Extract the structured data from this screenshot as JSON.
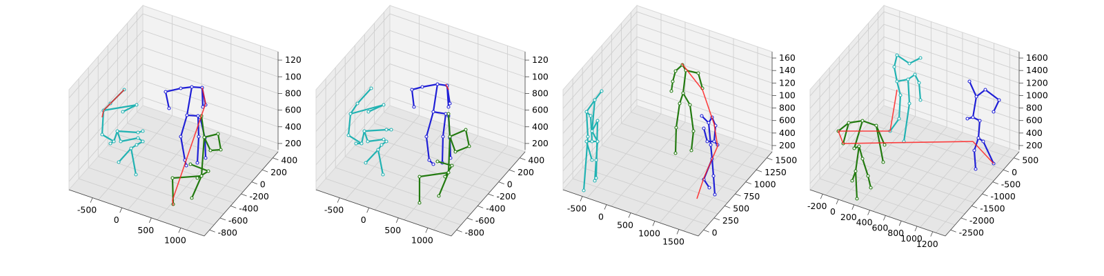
{
  "figure": {
    "panel_count": 4
  },
  "chart_data": [
    {
      "type": "3d-skeleton",
      "x_ticks": [
        "-500",
        "0",
        "500",
        "1000"
      ],
      "y_ticks": [
        "400",
        "200",
        "0",
        "-200",
        "-400",
        "-600",
        "-800"
      ],
      "z_ticks": [
        "120",
        "100",
        "800",
        "600",
        "400",
        "200"
      ],
      "colors": {
        "person_a": "#21b2b2",
        "person_b": "#1f1fd6",
        "person_c": "#237a10",
        "mismatch": "#ff2020"
      }
    },
    {
      "type": "3d-skeleton",
      "x_ticks": [
        "-500",
        "0",
        "500",
        "1000"
      ],
      "y_ticks": [
        "400",
        "200",
        "0",
        "-200",
        "-400",
        "-600",
        "-800"
      ],
      "z_ticks": [
        "120",
        "100",
        "800",
        "600",
        "400",
        "200"
      ],
      "colors": {
        "person_a": "#21b2b2",
        "person_b": "#1f1fd6",
        "person_c": "#237a10",
        "mismatch": "#ff2020"
      }
    },
    {
      "type": "3d-skeleton",
      "x_ticks": [
        "-500",
        "0",
        "500",
        "1000",
        "1500"
      ],
      "y_ticks": [
        "1500",
        "1250",
        "1000",
        "750",
        "500",
        "250",
        "0"
      ],
      "z_ticks": [
        "160",
        "140",
        "120",
        "100",
        "800",
        "600",
        "400",
        "200"
      ],
      "colors": {
        "person_a": "#21b2b2",
        "person_b": "#1f1fd6",
        "person_c": "#237a10",
        "mismatch": "#ff2020"
      }
    },
    {
      "type": "3d-skeleton",
      "x_ticks": [
        "-200",
        "0",
        "200",
        "400",
        "600",
        "800",
        "1000",
        "1200"
      ],
      "y_ticks": [
        "500",
        "0",
        "-500",
        "-1000",
        "-1500",
        "-2000",
        "-2500"
      ],
      "z_ticks": [
        "1600",
        "1400",
        "1200",
        "1000",
        "800",
        "600",
        "400",
        "200"
      ],
      "colors": {
        "person_a": "#21b2b2",
        "person_b": "#1f1fd6",
        "person_c": "#237a10",
        "mismatch": "#ff2020"
      }
    }
  ]
}
